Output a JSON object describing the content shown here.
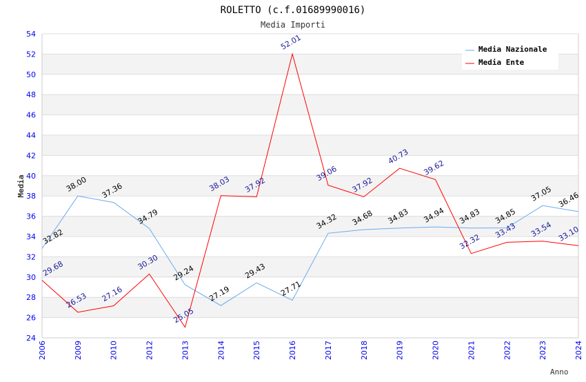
{
  "chart_data": {
    "type": "line",
    "title": "ROLETTO (c.f.01689990016)",
    "subtitle": "Media Importi",
    "xlabel": "Anno",
    "ylabel": "Media",
    "ylim": [
      24,
      54
    ],
    "yticks": [
      24,
      26,
      28,
      30,
      32,
      34,
      36,
      38,
      40,
      42,
      44,
      46,
      48,
      50,
      52,
      54
    ],
    "categories": [
      "2006",
      "2009",
      "2010",
      "2012",
      "2013",
      "2014",
      "2015",
      "2016",
      "2017",
      "2018",
      "2019",
      "2020",
      "2021",
      "2022",
      "2023",
      "2024"
    ],
    "legend_position": "top-right",
    "grid": true,
    "series": [
      {
        "name": "Media Nazionale",
        "color": "#6aaaf0",
        "label_color": "#000000",
        "values": [
          32.82,
          38.0,
          37.36,
          34.79,
          29.24,
          27.19,
          29.43,
          27.71,
          34.32,
          34.68,
          34.83,
          34.94,
          34.83,
          34.85,
          37.05,
          36.46
        ]
      },
      {
        "name": "Media Ente",
        "color": "#ff0000",
        "label_color": "#1a1a99",
        "values": [
          29.68,
          26.53,
          27.16,
          30.3,
          25.05,
          38.03,
          37.92,
          52.01,
          39.06,
          37.92,
          40.73,
          39.62,
          32.32,
          33.43,
          33.54,
          33.1
        ]
      }
    ]
  }
}
